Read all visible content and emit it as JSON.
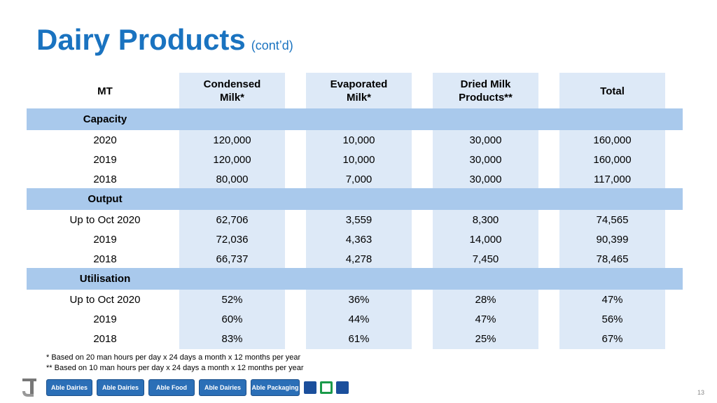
{
  "title": "Dairy Products",
  "subtitle": "(cont’d)",
  "table": {
    "headers": {
      "mt": "MT",
      "condensed_line1": "Condensed",
      "condensed_line2": "Milk*",
      "evaporated_line1": "Evaporated",
      "evaporated_line2": "Milk*",
      "dried_line1": "Dried Milk",
      "dried_line2": "Products**",
      "total": "Total"
    },
    "capacity": {
      "label": "Capacity",
      "rows": [
        {
          "year": "2020",
          "condensed": "120,000",
          "evaporated": "10,000",
          "dried": "30,000",
          "total": "160,000"
        },
        {
          "year": "2019",
          "condensed": "120,000",
          "evaporated": "10,000",
          "dried": "30,000",
          "total": "160,000"
        },
        {
          "year": "2018",
          "condensed": "80,000",
          "evaporated": "7,000",
          "dried": "30,000",
          "total": "117,000"
        }
      ]
    },
    "output": {
      "label": "Output",
      "rows": [
        {
          "year": "Up to Oct 2020",
          "condensed": "62,706",
          "evaporated": "3,559",
          "dried": "8,300",
          "total": "74,565"
        },
        {
          "year": "2019",
          "condensed": "72,036",
          "evaporated": "4,363",
          "dried": "14,000",
          "total": "90,399"
        },
        {
          "year": "2018",
          "condensed": "66,737",
          "evaporated": "4,278",
          "dried": "7,450",
          "total": "78,465"
        }
      ]
    },
    "utilisation": {
      "label": "Utilisation",
      "rows": [
        {
          "year": "Up to Oct 2020",
          "condensed": "52%",
          "evaporated": "36%",
          "dried": "28%",
          "total": "47%"
        },
        {
          "year": "2019",
          "condensed": "60%",
          "evaporated": "44%",
          "dried": "47%",
          "total": "56%"
        },
        {
          "year": "2018",
          "condensed": "83%",
          "evaporated": "61%",
          "dried": "25%",
          "total": "67%"
        }
      ]
    }
  },
  "footnotes": {
    "note1": "* Based on 20 man hours per day x 24 days a month x 12 months per year",
    "note2": "** Based on 10 man hours per day x 24 days a month x 12 months per year"
  },
  "logos": {
    "able_dairies": "Able Dairies",
    "able_dairies_msgo": "Able Dairies",
    "able_food": "Able Food",
    "able_dairies_marketing": "Able Dairies",
    "able_packaging": "Able Packaging"
  },
  "page_number": "13",
  "colors": {
    "title": "#1a73c0",
    "column_fill": "#dde9f7",
    "section_band": "#a9c9ec",
    "logo_blue": "#2b6fb7"
  }
}
